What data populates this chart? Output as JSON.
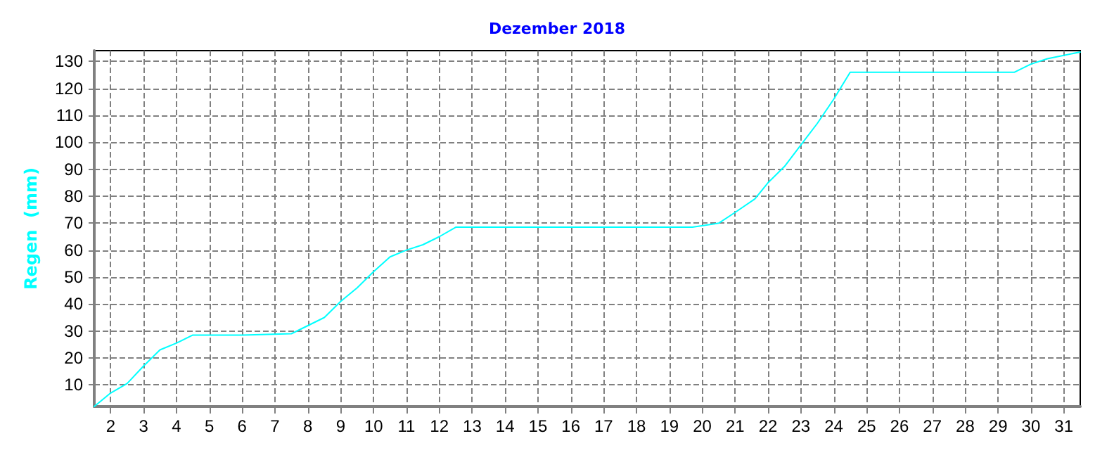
{
  "chart_data": {
    "type": "line",
    "title": "Dezember 2018",
    "ylabel": "Regen  (mm)",
    "x": [
      1.5,
      2,
      2.5,
      3,
      3.5,
      4,
      4.5,
      6,
      7.5,
      8,
      8.5,
      9,
      9.5,
      10,
      10.5,
      11,
      11.5,
      12,
      12.5,
      19.7,
      20.5,
      21,
      21.6,
      22,
      22.5,
      23,
      23.5,
      24,
      24.5,
      29.5,
      30,
      30.5,
      31.5
    ],
    "series": [
      {
        "color": "#00ffff",
        "values": [
          2,
          7,
          10.5,
          17,
          23,
          25.5,
          28.5,
          28.5,
          29,
          32,
          35,
          41,
          46,
          52,
          57.5,
          60,
          62,
          65,
          68.5,
          68.5,
          70,
          74,
          79,
          85,
          91,
          99,
          107,
          116,
          126,
          126,
          129,
          131,
          133.5
        ]
      }
    ],
    "xlim": [
      1.5,
      31.5
    ],
    "xticks": [
      2,
      3,
      4,
      5,
      6,
      7,
      8,
      9,
      10,
      11,
      12,
      13,
      14,
      15,
      16,
      17,
      18,
      19,
      20,
      21,
      22,
      23,
      24,
      25,
      26,
      27,
      28,
      29,
      30,
      31
    ],
    "ylim": [
      2,
      134
    ],
    "yticks": [
      10,
      20,
      30,
      40,
      50,
      60,
      70,
      80,
      90,
      100,
      110,
      120,
      130
    ],
    "grid": true,
    "marker": "none",
    "line_style": "solid"
  }
}
